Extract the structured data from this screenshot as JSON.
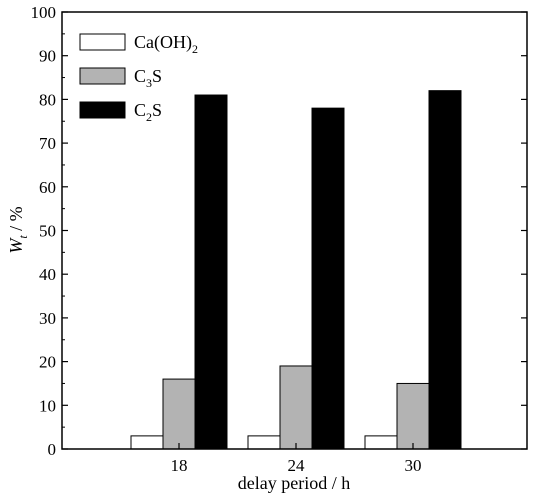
{
  "chart_data": {
    "type": "bar",
    "title": "",
    "categories": [
      "18",
      "24",
      "30"
    ],
    "series": [
      {
        "name": "Ca(OH)2",
        "name_main": "Ca(OH)",
        "name_sub": "2",
        "name_after": "",
        "color": "#ffffff",
        "values": [
          3,
          3,
          3
        ]
      },
      {
        "name": "C3S",
        "name_main": "C",
        "name_sub": "3",
        "name_after": "S",
        "color": "#b3b3b3",
        "values": [
          16,
          19,
          15
        ]
      },
      {
        "name": "C2S",
        "name_main": "C",
        "name_sub": "2",
        "name_after": "S",
        "color": "#000000",
        "values": [
          81,
          78,
          82
        ]
      }
    ],
    "xlabel": "delay period / h",
    "ylabel": "W",
    "ylabel_sub": "t",
    "ylabel_unit": " / %",
    "ylim": [
      0,
      100
    ],
    "yticks": [
      0,
      10,
      20,
      30,
      40,
      50,
      60,
      70,
      80,
      90,
      100
    ],
    "legend_position": "top-left",
    "grid": false
  }
}
